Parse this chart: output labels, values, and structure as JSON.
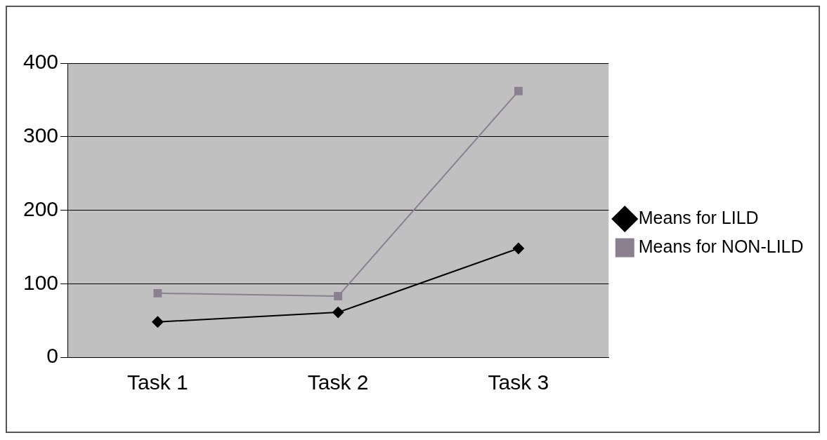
{
  "chart_data": {
    "type": "line",
    "categories": [
      "Task 1",
      "Task 2",
      "Task 3"
    ],
    "series": [
      {
        "name": "Means for LILD",
        "color": "#000000",
        "marker": "diamond",
        "values": [
          48,
          61,
          148
        ]
      },
      {
        "name": "Means for NON-LILD",
        "color": "#8a8090",
        "marker": "square",
        "values": [
          87,
          83,
          362
        ]
      }
    ],
    "ylim": [
      0,
      400
    ],
    "yticks": [
      0,
      100,
      200,
      300,
      400
    ],
    "grid": "y",
    "legend": "right",
    "line_style": "solid"
  }
}
